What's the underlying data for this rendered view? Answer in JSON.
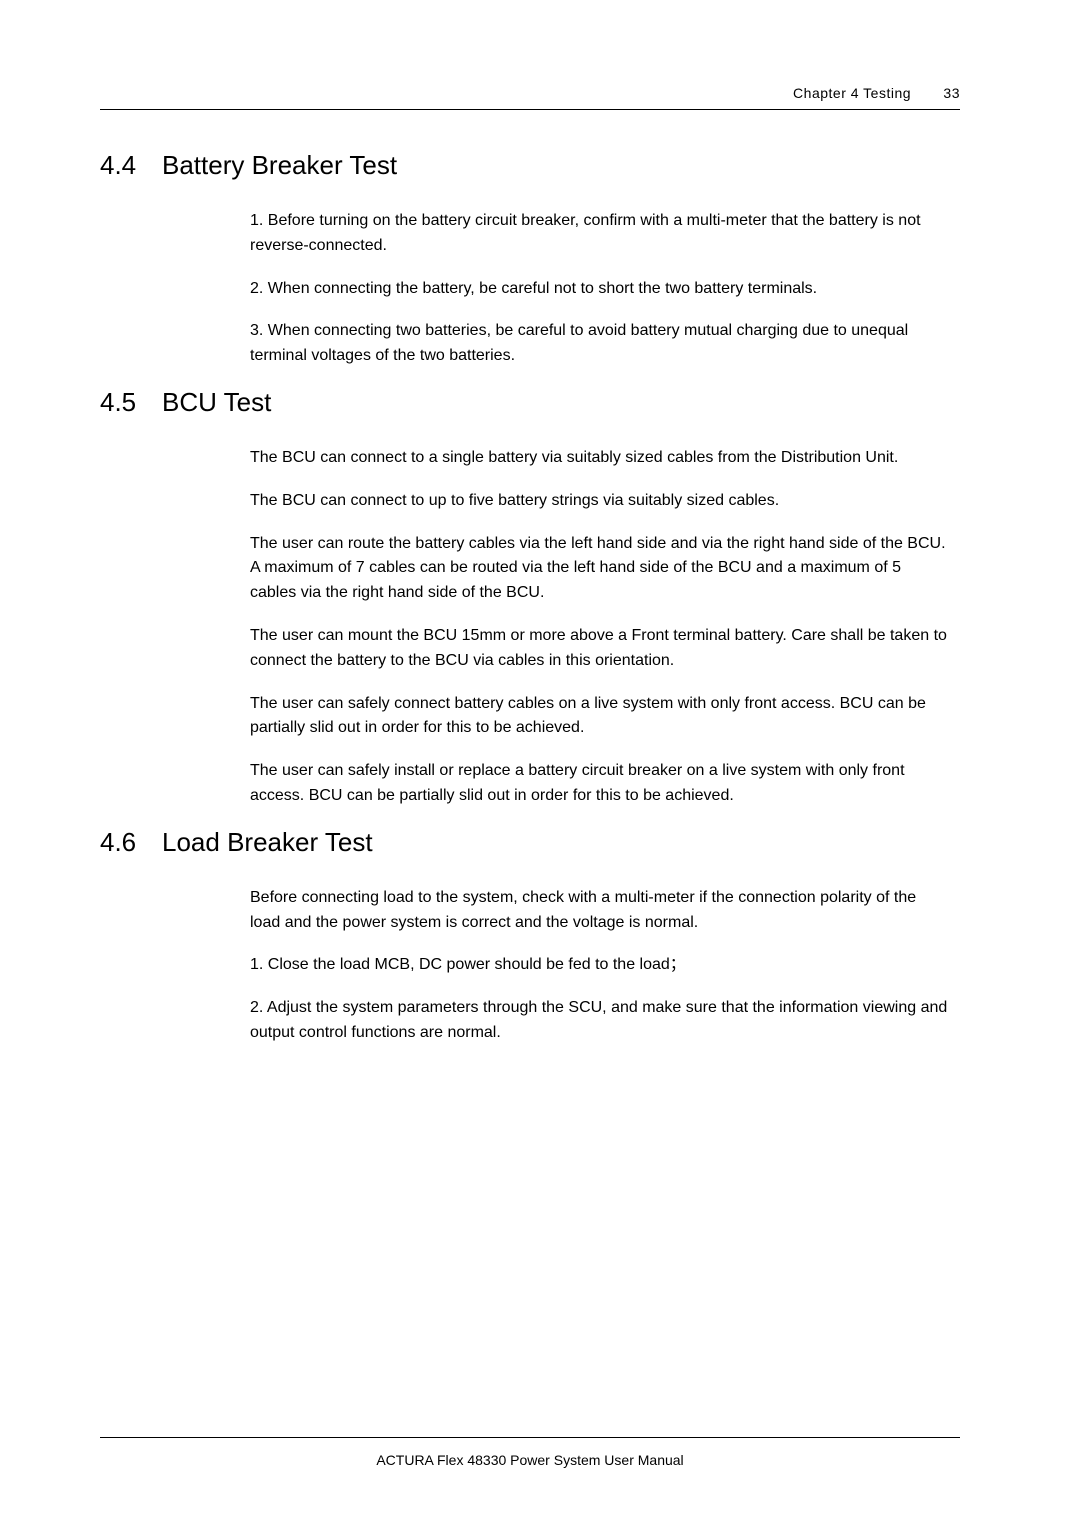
{
  "header": {
    "chapter_label": "Chapter  4   Testing",
    "page_number": "33"
  },
  "sections": [
    {
      "number": "4.4",
      "title": "Battery Breaker Test",
      "paragraphs": [
        "1. Before turning on the battery circuit breaker, confirm with a multi-meter that the battery is not reverse-connected.",
        "2. When connecting the battery, be careful not to short the two battery terminals.",
        "3. When connecting two batteries, be careful to avoid battery mutual charging due to unequal terminal voltages of the two batteries."
      ]
    },
    {
      "number": "4.5",
      "title": "BCU Test",
      "paragraphs": [
        "The BCU can connect to a single battery via suitably sized cables from the Distribution Unit.",
        "The BCU can connect to up to five battery strings via suitably sized cables.",
        "The user can route the battery cables via the left hand side and via the right hand side of the BCU. A maximum of 7 cables can be routed via the left hand side of the BCU and a maximum of 5 cables via the right hand side of the BCU.",
        "The user can mount the BCU 15mm or more above a Front terminal battery.   Care shall be taken to connect the battery to the BCU via cables in this orientation.",
        "The user can safely connect battery cables on a live system with only front access. BCU can be partially slid out in order for this to be achieved.",
        "The user can safely install or replace a battery circuit breaker on a live system with only front access. BCU can be partially slid out in order for this to be achieved."
      ]
    },
    {
      "number": "4.6",
      "title": "Load Breaker Test",
      "paragraphs": [
        "Before connecting load to the system, check with a multi-meter if the connection polarity of the load and the power system is correct and the voltage is normal.",
        "1. Close the load MCB, DC power should be fed to the load；",
        "2. Adjust the system parameters through the SCU, and make sure that the information viewing and output control functions are normal."
      ]
    }
  ],
  "footer": {
    "text": "ACTURA Flex 48330 Power System   User Manual"
  },
  "style": {
    "background_color": "#ffffff",
    "text_color": "#000000",
    "heading_fontsize": 26,
    "body_fontsize": 16,
    "header_fontsize": 14,
    "footer_fontsize": 14,
    "rule_color": "#000000"
  }
}
